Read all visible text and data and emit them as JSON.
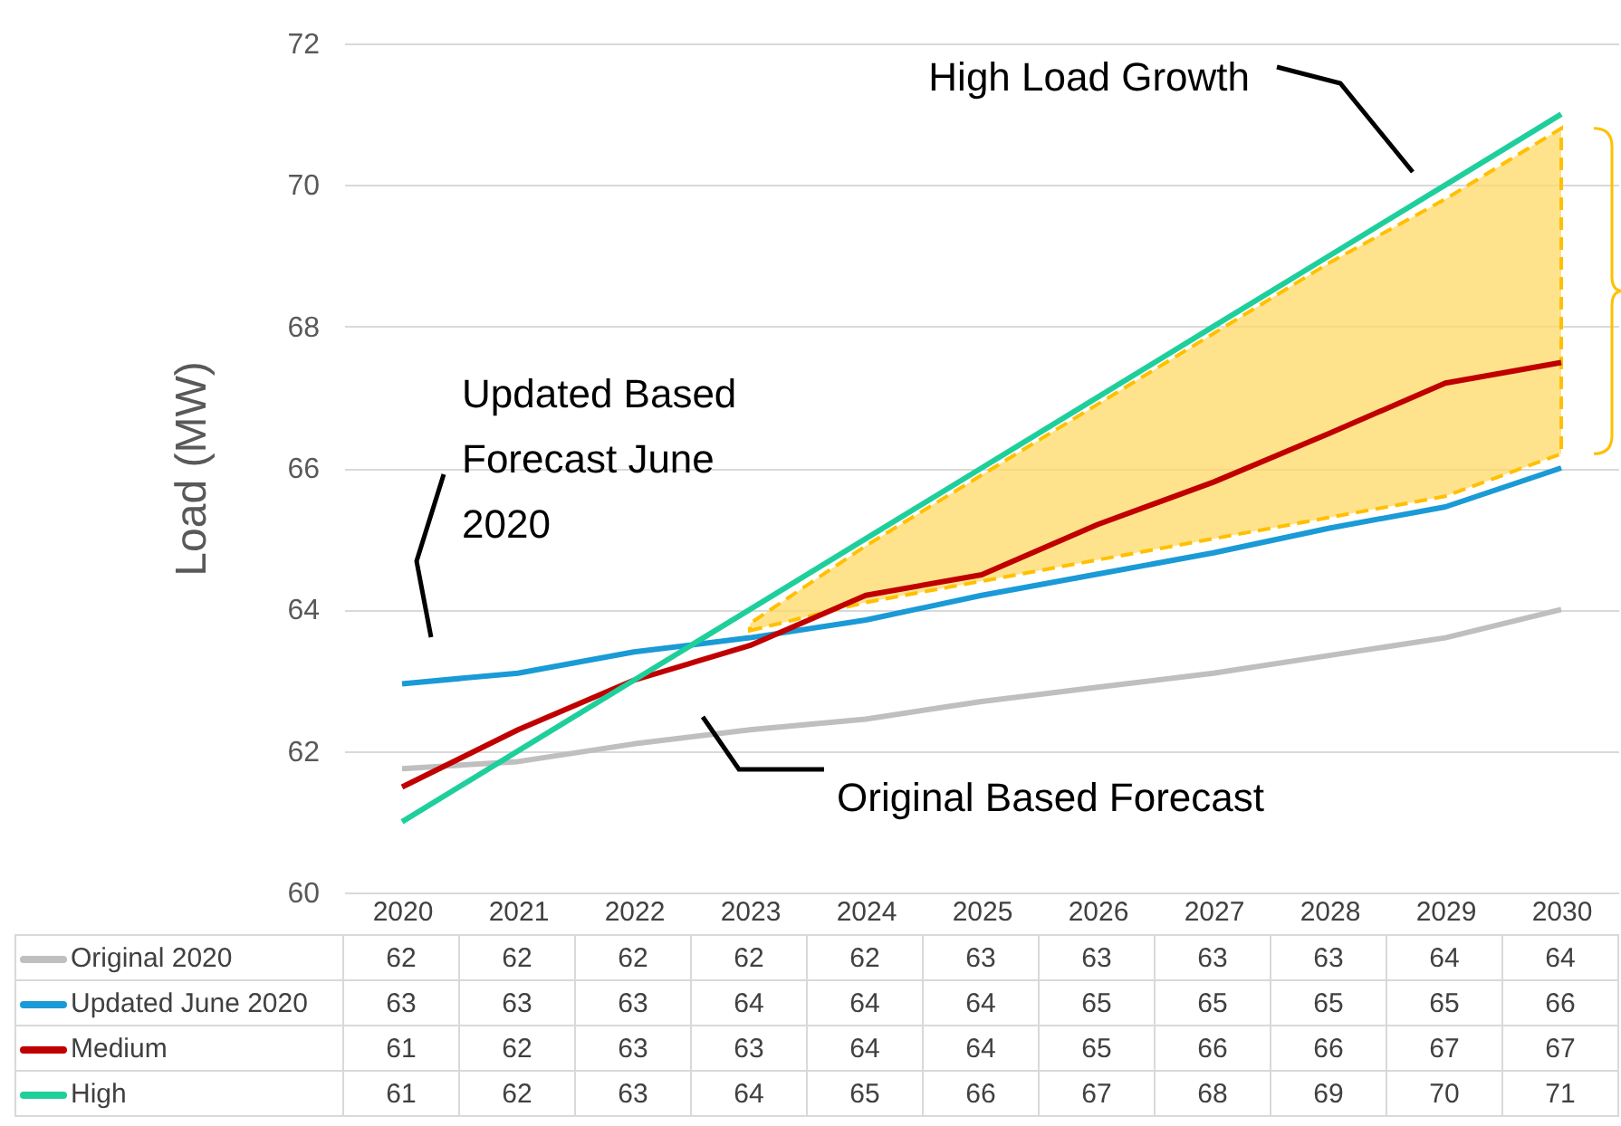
{
  "chart_data": {
    "type": "line",
    "ylabel": "Load (MW)",
    "categories": [
      "2020",
      "2021",
      "2022",
      "2023",
      "2024",
      "2025",
      "2026",
      "2027",
      "2028",
      "2029",
      "2030"
    ],
    "ylim": [
      60,
      72
    ],
    "yticks": [
      60,
      62,
      64,
      66,
      68,
      70,
      72
    ],
    "grid": "y",
    "legend": "bottom",
    "marker": "none",
    "line_style": "solid",
    "series": [
      {
        "name": "Original 2020",
        "color": "#bfbfbf",
        "values": [
          61.75,
          61.85,
          62.1,
          62.3,
          62.45,
          62.7,
          62.9,
          63.1,
          63.35,
          63.6,
          64.0
        ],
        "value_labels": [
          "62",
          "62",
          "62",
          "62",
          "62",
          "63",
          "63",
          "63",
          "63",
          "64",
          "64"
        ]
      },
      {
        "name": "Updated June 2020",
        "color": "#1a9ad6",
        "values": [
          62.95,
          63.1,
          63.4,
          63.6,
          63.85,
          64.2,
          64.5,
          64.8,
          65.15,
          65.45,
          66.0
        ],
        "value_labels": [
          "63",
          "63",
          "63",
          "64",
          "64",
          "64",
          "65",
          "65",
          "65",
          "65",
          "66"
        ]
      },
      {
        "name": "Medium",
        "color": "#c00000",
        "values": [
          61.49,
          62.3,
          63.0,
          63.49,
          64.2,
          64.49,
          65.2,
          65.8,
          66.49,
          67.2,
          67.49
        ],
        "value_labels": [
          "61",
          "62",
          "63",
          "63",
          "64",
          "64",
          "65",
          "66",
          "66",
          "67",
          "67"
        ],
        "lower": [
          null,
          null,
          null,
          63.7,
          64.1,
          64.4,
          64.7,
          65.0,
          65.3,
          65.6,
          66.2
        ],
        "upper": [
          null,
          null,
          null,
          63.8,
          64.9,
          65.9,
          66.9,
          67.9,
          68.9,
          69.8,
          70.8
        ]
      },
      {
        "name": "High",
        "color": "#1fcf9b",
        "values": [
          61,
          62,
          63,
          64,
          65,
          66,
          67,
          68,
          69,
          70,
          71
        ],
        "value_labels": [
          "61",
          "62",
          "63",
          "64",
          "65",
          "66",
          "67",
          "68",
          "69",
          "70",
          "71"
        ]
      }
    ],
    "annotations": [
      "High Load Growth",
      "Updated Based Forecast June 2020",
      "Original Based Forecast"
    ]
  }
}
